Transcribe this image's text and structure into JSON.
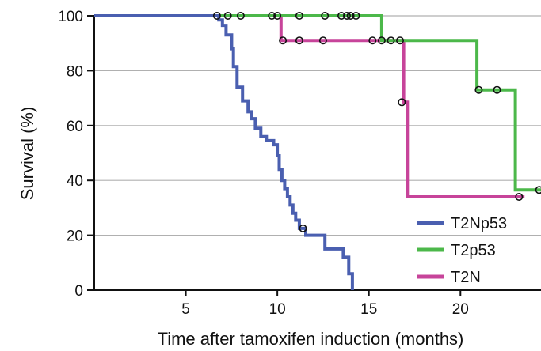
{
  "chart_data": {
    "type": "line",
    "subtype": "kaplan-meier survival (step)",
    "xlabel": "Time after tamoxifen induction (months)",
    "ylabel": "Survival (%)",
    "xlim": [
      0,
      24.4
    ],
    "ylim": [
      0,
      100
    ],
    "xticks": [
      5,
      10,
      15,
      20
    ],
    "yticks": [
      0,
      20,
      40,
      60,
      80,
      100
    ],
    "grid": "horizontal",
    "legend_position": "bottom-right",
    "series": [
      {
        "name": "T2Np53",
        "color": "#4a5fb0",
        "steps": [
          [
            0,
            100
          ],
          [
            6.6,
            100
          ],
          [
            6.8,
            98.5
          ],
          [
            7.0,
            96.5
          ],
          [
            7.2,
            93
          ],
          [
            7.5,
            88
          ],
          [
            7.6,
            81.5
          ],
          [
            7.8,
            74
          ],
          [
            8.1,
            69
          ],
          [
            8.4,
            65
          ],
          [
            8.6,
            62.5
          ],
          [
            8.8,
            59
          ],
          [
            9.1,
            56
          ],
          [
            9.4,
            54.5
          ],
          [
            9.8,
            53
          ],
          [
            10.0,
            49
          ],
          [
            10.1,
            44
          ],
          [
            10.25,
            40
          ],
          [
            10.4,
            37
          ],
          [
            10.55,
            34
          ],
          [
            10.7,
            31
          ],
          [
            10.85,
            28
          ],
          [
            11.0,
            25.5
          ],
          [
            11.2,
            22.5
          ],
          [
            11.55,
            20
          ],
          [
            12.2,
            20
          ],
          [
            12.6,
            15
          ],
          [
            13.2,
            15
          ],
          [
            13.6,
            12
          ],
          [
            13.9,
            6
          ],
          [
            14.1,
            0
          ]
        ],
        "censored": [
          [
            11.4,
            22.5
          ]
        ]
      },
      {
        "name": "T2p53",
        "color": "#4cb84a",
        "steps": [
          [
            0,
            100
          ],
          [
            15.7,
            100
          ],
          [
            15.7,
            91
          ],
          [
            20.9,
            91
          ],
          [
            20.9,
            73
          ],
          [
            23.0,
            73
          ],
          [
            23.0,
            36.5
          ],
          [
            24.4,
            36.5
          ]
        ],
        "censored": [
          [
            6.7,
            100
          ],
          [
            7.3,
            100
          ],
          [
            8.0,
            100
          ],
          [
            9.7,
            100
          ],
          [
            10.0,
            100
          ],
          [
            11.2,
            100
          ],
          [
            12.6,
            100
          ],
          [
            13.5,
            100
          ],
          [
            13.8,
            100
          ],
          [
            14.0,
            100
          ],
          [
            14.3,
            100
          ],
          [
            21.0,
            73
          ],
          [
            22.0,
            73
          ],
          [
            24.3,
            36.5
          ]
        ]
      },
      {
        "name": "T2N",
        "color": "#c7449a",
        "steps": [
          [
            0,
            100
          ],
          [
            10.2,
            100
          ],
          [
            10.2,
            91
          ],
          [
            16.9,
            91
          ],
          [
            16.9,
            68.5
          ],
          [
            17.1,
            68.5
          ],
          [
            17.1,
            34
          ],
          [
            23.5,
            34
          ]
        ],
        "censored": [
          [
            10.3,
            91
          ],
          [
            11.2,
            91
          ],
          [
            12.5,
            91
          ],
          [
            15.2,
            91
          ],
          [
            15.7,
            91
          ],
          [
            16.2,
            91
          ],
          [
            16.7,
            91
          ],
          [
            16.8,
            68.5
          ],
          [
            23.2,
            34
          ]
        ]
      }
    ]
  }
}
